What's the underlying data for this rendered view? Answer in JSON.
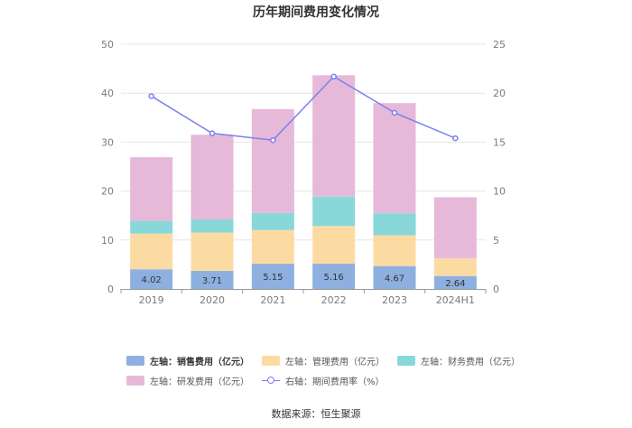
{
  "chart_data": {
    "type": "bar",
    "title": "历年期间费用变化情况",
    "categories": [
      "2019",
      "2020",
      "2021",
      "2022",
      "2023",
      "2024H1"
    ],
    "series": [
      {
        "name": "左轴：销售费用（亿元）",
        "axis": "left",
        "type": "bar",
        "color": "#8eb0e0",
        "values": [
          4.02,
          3.71,
          5.15,
          5.16,
          4.67,
          2.64
        ]
      },
      {
        "name": "左轴：管理费用（亿元）",
        "axis": "left",
        "type": "bar",
        "color": "#fcdba3",
        "values": [
          7.3,
          7.8,
          6.9,
          7.7,
          6.3,
          3.6
        ]
      },
      {
        "name": "左轴：财务费用（亿元）",
        "axis": "left",
        "type": "bar",
        "color": "#88d8da",
        "values": [
          2.6,
          2.7,
          3.5,
          6.0,
          4.5,
          0.0
        ]
      },
      {
        "name": "左轴：研发费用（亿元）",
        "axis": "left",
        "type": "bar",
        "color": "#e6b9d9",
        "values": [
          13.0,
          17.3,
          21.2,
          24.8,
          22.5,
          12.5
        ]
      },
      {
        "name": "右轴：期间费用率（%）",
        "axis": "right",
        "type": "line",
        "color": "#7b7ff0",
        "values": [
          19.7,
          15.9,
          15.2,
          21.7,
          18.0,
          15.4
        ]
      }
    ],
    "bar_labels": [
      "4.02",
      "3.71",
      "5.15",
      "5.16",
      "4.67",
      "2.64"
    ],
    "y_left": {
      "min": 0,
      "max": 50,
      "ticks": [
        "0",
        "10",
        "20",
        "30",
        "40",
        "50"
      ]
    },
    "y_right": {
      "min": 0,
      "max": 25,
      "ticks": [
        "0",
        "5",
        "10",
        "15",
        "20",
        "25"
      ]
    },
    "grid": true,
    "legend_position": "bottom"
  },
  "source": "数据来源：恒生聚源"
}
